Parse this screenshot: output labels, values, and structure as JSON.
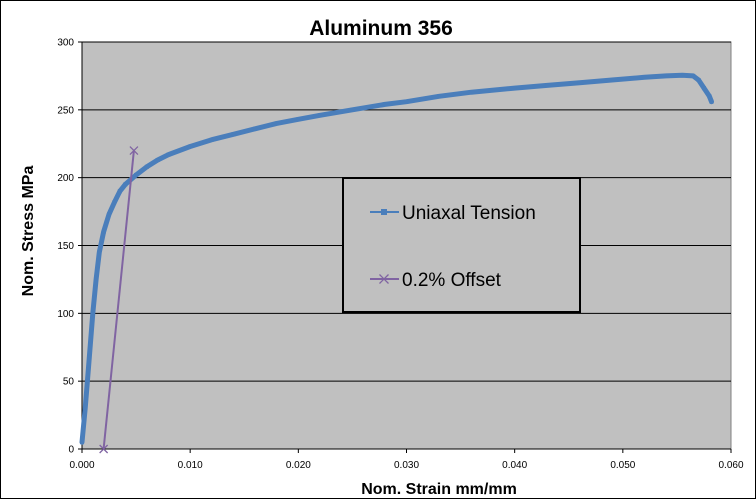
{
  "chart_data": {
    "type": "line",
    "title": "Aluminum 356",
    "xlabel": "Nom. Strain mm/mm",
    "ylabel": "Nom. Stress MPa",
    "xlim": [
      0,
      0.06
    ],
    "ylim": [
      0,
      300
    ],
    "x_ticks": [
      "0.000",
      "0.010",
      "0.020",
      "0.030",
      "0.040",
      "0.050",
      "0.060"
    ],
    "y_ticks": [
      "0",
      "50",
      "100",
      "150",
      "200",
      "250",
      "300"
    ],
    "grid": "horizontal",
    "plot_background": "#c0c0c0",
    "legend_position": "center-right",
    "series": [
      {
        "name": "Uniaxal Tension",
        "color": "#4a7ebb",
        "marker": "square",
        "x": [
          0.0,
          0.0003,
          0.0006,
          0.001,
          0.0013,
          0.0016,
          0.002,
          0.0025,
          0.003,
          0.0035,
          0.004,
          0.005,
          0.006,
          0.007,
          0.008,
          0.01,
          0.012,
          0.014,
          0.016,
          0.018,
          0.02,
          0.022,
          0.025,
          0.028,
          0.03,
          0.033,
          0.036,
          0.04,
          0.043,
          0.046,
          0.049,
          0.052,
          0.054,
          0.0555,
          0.0565,
          0.057,
          0.0575,
          0.058,
          0.0582
        ],
        "y": [
          5,
          30,
          60,
          100,
          125,
          145,
          160,
          173,
          182,
          190,
          195,
          202,
          208,
          213,
          217,
          223,
          228,
          232,
          236,
          240,
          243,
          246,
          250,
          254,
          256,
          260,
          263,
          266,
          268,
          270,
          272,
          274,
          275,
          275.5,
          275,
          272,
          266,
          260,
          256
        ]
      },
      {
        "name": "0.2% Offset",
        "color": "#8064a2",
        "marker": "x",
        "x": [
          0.002,
          0.0048
        ],
        "y": [
          0,
          220
        ]
      }
    ]
  }
}
